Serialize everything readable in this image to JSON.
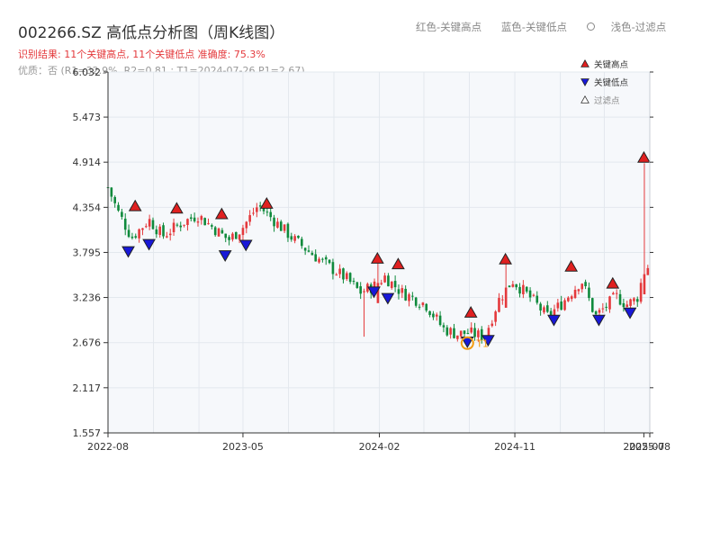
{
  "header": {
    "title": "002266.SZ 高低点分析图（周K线图）",
    "result_text": "识别结果: 11个关键高点, 11个关键低点   准确度: 75.3%",
    "quality_text": "优质：否  (R1=32.9%, R2=0.81 ; T1=2024-07-26 P1=2.67)",
    "legend_red": "红色-关键高点",
    "legend_blue": "蓝色-关键低点",
    "legend_light": "浅色-过滤点"
  },
  "colors": {
    "up": "#e4393c",
    "down": "#0f8a3c",
    "high_marker": "#e02020",
    "low_marker": "#1818d8",
    "highlight": "#f39c12",
    "plot_bg": "#f6f8fb"
  },
  "legend": {
    "high": "关键高点",
    "low": "关键低点",
    "filtered": "过滤点"
  },
  "chart_data": {
    "type": "candlestick",
    "ylim": [
      1.557,
      6.032
    ],
    "y_ticks": [
      1.557,
      2.117,
      2.676,
      3.236,
      3.795,
      4.354,
      4.914,
      5.473,
      6.032
    ],
    "y_tick_labels": [
      "1.557",
      "2.117",
      "2.676",
      "3.236",
      "3.795",
      "4.354",
      "4.914",
      "5.473",
      "6.032"
    ],
    "x_range": [
      "2022-08-01",
      "2025-08-01"
    ],
    "x_ticks": [
      "2022-08-01",
      "2023-05-01",
      "2024-02-01",
      "2024-11-01",
      "2025-07-20",
      "2025-08-01"
    ],
    "x_tick_labels": [
      "2022-08",
      "2023-05",
      "2024-02",
      "2024-11",
      "2025-07",
      "2025-08"
    ],
    "anchors": [
      [
        "2022-08-01",
        4.6
      ],
      [
        "2022-08-21",
        4.3
      ],
      [
        "2022-09-18",
        3.98
      ],
      [
        "2022-10-23",
        4.2
      ],
      [
        "2022-11-20",
        4.0
      ],
      [
        "2022-12-25",
        4.15
      ],
      [
        "2023-01-29",
        4.26
      ],
      [
        "2023-03-12",
        4.05
      ],
      [
        "2023-04-02",
        3.95
      ],
      [
        "2023-04-30",
        4.1
      ],
      [
        "2023-06-01",
        4.38
      ],
      [
        "2023-08-13",
        3.95
      ],
      [
        "2023-10-08",
        3.68
      ],
      [
        "2023-11-26",
        3.47
      ],
      [
        "2023-12-24",
        3.3
      ],
      [
        "2024-01-28",
        3.4
      ],
      [
        "2024-02-11",
        3.5
      ],
      [
        "2024-03-17",
        3.3
      ],
      [
        "2024-05-05",
        3.15
      ],
      [
        "2024-06-09",
        2.85
      ],
      [
        "2024-07-07",
        2.78
      ],
      [
        "2024-07-28",
        2.8
      ],
      [
        "2024-09-01",
        2.75
      ],
      [
        "2024-09-29",
        3.2
      ],
      [
        "2024-10-27",
        3.45
      ],
      [
        "2024-12-08",
        3.2
      ],
      [
        "2025-01-05",
        3.0
      ],
      [
        "2025-02-02",
        3.15
      ],
      [
        "2025-03-16",
        3.45
      ],
      [
        "2025-04-13",
        3.0
      ],
      [
        "2025-05-25",
        3.25
      ],
      [
        "2025-06-15",
        3.15
      ],
      [
        "2025-07-06",
        3.22
      ],
      [
        "2025-07-20",
        3.55
      ],
      [
        "2025-08-01",
        3.65
      ]
    ],
    "spikes": [
      {
        "date": "2023-12-31",
        "low": 2.75
      },
      {
        "date": "2024-01-28",
        "high": 3.68
      },
      {
        "date": "2024-10-13",
        "high": 3.65
      },
      {
        "date": "2025-07-20",
        "high": 4.9
      }
    ],
    "key_highs": [
      {
        "date": "2022-09-25",
        "value": 4.3
      },
      {
        "date": "2022-12-18",
        "value": 4.27
      },
      {
        "date": "2023-03-19",
        "value": 4.2
      },
      {
        "date": "2023-06-18",
        "value": 4.33
      },
      {
        "date": "2024-01-28",
        "value": 3.65
      },
      {
        "date": "2024-03-10",
        "value": 3.58
      },
      {
        "date": "2024-08-04",
        "value": 2.98
      },
      {
        "date": "2024-10-13",
        "value": 3.64
      },
      {
        "date": "2025-02-23",
        "value": 3.55
      },
      {
        "date": "2025-05-18",
        "value": 3.34
      },
      {
        "date": "2025-07-20",
        "value": 4.9
      }
    ],
    "key_lows": [
      {
        "date": "2022-09-11",
        "value": 3.8
      },
      {
        "date": "2022-10-23",
        "value": 3.89
      },
      {
        "date": "2023-03-26",
        "value": 3.75
      },
      {
        "date": "2023-05-07",
        "value": 3.88
      },
      {
        "date": "2024-01-21",
        "value": 3.3
      },
      {
        "date": "2024-02-18",
        "value": 3.22
      },
      {
        "date": "2024-07-28",
        "value": 2.68
      },
      {
        "date": "2024-09-08",
        "value": 2.7
      },
      {
        "date": "2025-01-19",
        "value": 2.95
      },
      {
        "date": "2025-04-20",
        "value": 2.95
      },
      {
        "date": "2025-06-22",
        "value": 3.04
      }
    ],
    "highlight_point": {
      "date": "2024-07-28",
      "value": 2.67,
      "label": "T1"
    }
  }
}
